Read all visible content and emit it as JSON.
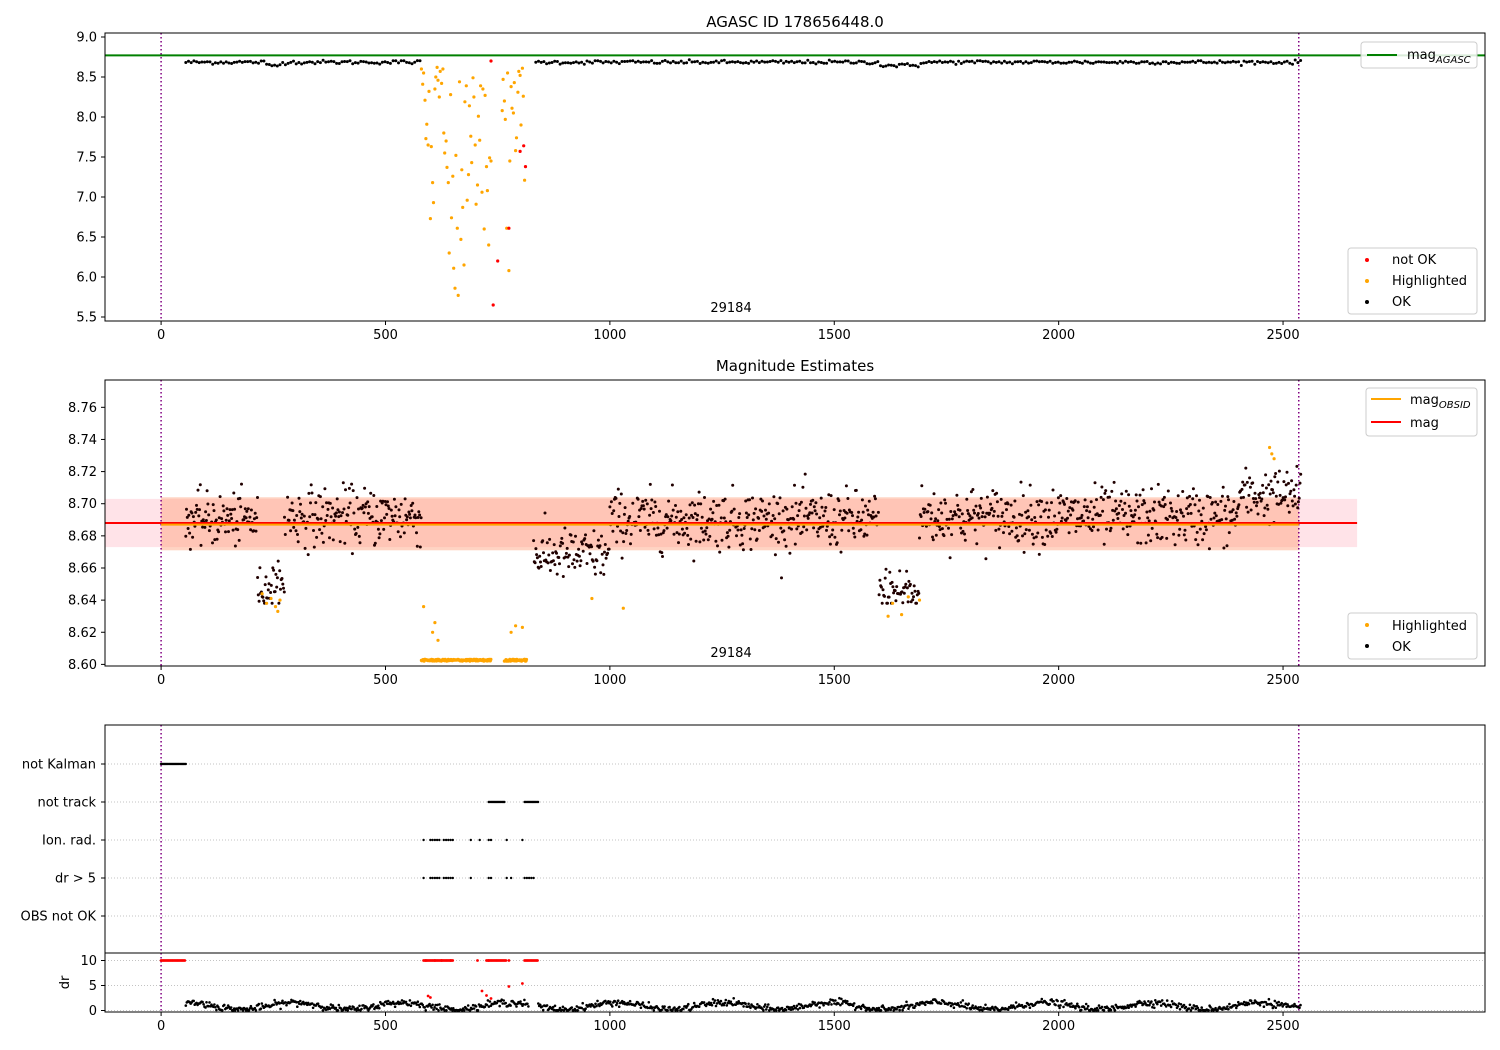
{
  "chart_data": [
    {
      "type": "scatter",
      "title": "AGASC ID 178656448.0",
      "xlim": [
        -125,
        2950
      ],
      "ylim": [
        5.45,
        9.05
      ],
      "x_ticks": [
        0,
        500,
        1000,
        1500,
        2000,
        2500
      ],
      "y_ticks": [
        5.5,
        6.0,
        6.5,
        7.0,
        7.5,
        8.0,
        8.5,
        9.0
      ],
      "y_tick_labels": [
        "5.5",
        "6.0",
        "6.5",
        "7.0",
        "7.5",
        "8.0",
        "8.5",
        "9.0"
      ],
      "obs_annotation": {
        "text": "29184",
        "x": 1270
      },
      "vlines_x": [
        0,
        2535
      ],
      "reference_lines": [
        {
          "name": "mag_AGASC",
          "y": 8.77,
          "color": "#008000"
        }
      ],
      "baseline_level": 8.685,
      "dip_segments": [
        [
          230,
          270,
          8.645
        ],
        [
          1600,
          1690,
          8.645
        ]
      ],
      "ok_x_range": [
        55,
        2540
      ],
      "ok_gap": [
        580,
        830
      ],
      "highlighted_points": [
        [
          580,
          8.6
        ],
        [
          583,
          8.41
        ],
        [
          585,
          8.55
        ],
        [
          588,
          8.21
        ],
        [
          590,
          7.73
        ],
        [
          592,
          7.91
        ],
        [
          595,
          7.65
        ],
        [
          597,
          8.32
        ],
        [
          600,
          6.73
        ],
        [
          602,
          7.63
        ],
        [
          605,
          7.18
        ],
        [
          607,
          6.93
        ],
        [
          610,
          8.35
        ],
        [
          612,
          8.5
        ],
        [
          615,
          8.62
        ],
        [
          617,
          8.46
        ],
        [
          620,
          8.25
        ],
        [
          622,
          8.57
        ],
        [
          625,
          8.42
        ],
        [
          628,
          8.6
        ],
        [
          630,
          7.8
        ],
        [
          632,
          7.55
        ],
        [
          635,
          7.7
        ],
        [
          637,
          7.37
        ],
        [
          640,
          7.18
        ],
        [
          642,
          6.3
        ],
        [
          645,
          8.28
        ],
        [
          647,
          6.74
        ],
        [
          650,
          7.26
        ],
        [
          652,
          6.11
        ],
        [
          655,
          5.86
        ],
        [
          657,
          7.52
        ],
        [
          660,
          6.61
        ],
        [
          662,
          5.77
        ],
        [
          665,
          8.44
        ],
        [
          668,
          6.47
        ],
        [
          670,
          7.34
        ],
        [
          672,
          6.87
        ],
        [
          675,
          6.15
        ],
        [
          677,
          8.19
        ],
        [
          680,
          8.39
        ],
        [
          682,
          6.96
        ],
        [
          685,
          7.28
        ],
        [
          687,
          8.14
        ],
        [
          690,
          7.76
        ],
        [
          692,
          7.43
        ],
        [
          695,
          8.49
        ],
        [
          697,
          8.25
        ],
        [
          700,
          7.65
        ],
        [
          702,
          6.91
        ],
        [
          705,
          7.15
        ],
        [
          707,
          8.01
        ],
        [
          710,
          7.71
        ],
        [
          712,
          8.39
        ],
        [
          715,
          7.06
        ],
        [
          717,
          8.35
        ],
        [
          720,
          6.6
        ],
        [
          722,
          8.27
        ],
        [
          725,
          7.38
        ],
        [
          727,
          7.08
        ],
        [
          730,
          6.4
        ],
        [
          732,
          7.49
        ],
        [
          735,
          7.45
        ],
        [
          760,
          8.08
        ],
        [
          762,
          8.47
        ],
        [
          765,
          8.2
        ],
        [
          767,
          7.97
        ],
        [
          770,
          6.61
        ],
        [
          772,
          8.55
        ],
        [
          775,
          6.08
        ],
        [
          777,
          7.45
        ],
        [
          780,
          8.38
        ],
        [
          782,
          8.11
        ],
        [
          785,
          8.05
        ],
        [
          787,
          8.43
        ],
        [
          790,
          7.58
        ],
        [
          792,
          7.74
        ],
        [
          795,
          8.31
        ],
        [
          797,
          8.57
        ],
        [
          800,
          8.52
        ],
        [
          802,
          7.9
        ],
        [
          805,
          8.61
        ],
        [
          807,
          8.26
        ],
        [
          810,
          7.21
        ]
      ],
      "notok_points": [
        [
          735,
          8.7
        ],
        [
          740,
          5.65
        ],
        [
          750,
          6.2
        ],
        [
          775,
          6.61
        ],
        [
          800,
          7.57
        ],
        [
          808,
          7.64
        ],
        [
          812,
          7.38
        ]
      ],
      "legend_line": {
        "label": "mag",
        "subscript": "AGASC"
      },
      "legend_points": [
        "not OK",
        "Highlighted",
        "OK"
      ],
      "colors": {
        "ok": "#000000",
        "highlighted": "#ffa500",
        "notok": "#ff0000"
      }
    },
    {
      "type": "scatter",
      "title": "Magnitude Estimates",
      "xlim": [
        -125,
        2950
      ],
      "ylim": [
        8.599,
        8.777
      ],
      "x_ticks": [
        0,
        500,
        1000,
        1500,
        2000,
        2500
      ],
      "y_ticks": [
        8.6,
        8.62,
        8.64,
        8.66,
        8.68,
        8.7,
        8.72,
        8.74,
        8.76
      ],
      "y_tick_labels": [
        "8.60",
        "8.62",
        "8.64",
        "8.66",
        "8.68",
        "8.70",
        "8.72",
        "8.74",
        "8.76"
      ],
      "obs_annotation": {
        "text": "29184",
        "x": 1270
      },
      "vlines_x": [
        0,
        2535
      ],
      "reference_lines": [
        {
          "name": "mag",
          "y": 8.688,
          "x0": -125,
          "x1": 2665,
          "color": "#ff0000"
        },
        {
          "name": "mag_OBSID",
          "y": 8.687,
          "x0": 0,
          "x1": 2535,
          "color": "#ffa500"
        }
      ],
      "bands": [
        {
          "name": "mag band",
          "y0": 8.673,
          "y1": 8.703,
          "x0": -125,
          "x1": 2665,
          "color": "#ffc0cb"
        },
        {
          "name": "mag_OBSID band",
          "y0": 8.671,
          "y1": 8.704,
          "x0": 0,
          "x1": 2535,
          "color": "#ffa07a"
        }
      ],
      "segments": [
        {
          "x0": 55,
          "x1": 215,
          "level": 8.69,
          "spread": 0.008
        },
        {
          "x0": 215,
          "x1": 275,
          "level": 8.648,
          "spread": 0.007
        },
        {
          "x0": 275,
          "x1": 580,
          "level": 8.692,
          "spread": 0.009
        },
        {
          "x0": 830,
          "x1": 1000,
          "level": 8.668,
          "spread": 0.008
        },
        {
          "x0": 1000,
          "x1": 1600,
          "level": 8.69,
          "spread": 0.009
        },
        {
          "x0": 1600,
          "x1": 1690,
          "level": 8.646,
          "spread": 0.007
        },
        {
          "x0": 1690,
          "x1": 2400,
          "level": 8.692,
          "spread": 0.009
        },
        {
          "x0": 2400,
          "x1": 2540,
          "level": 8.705,
          "spread": 0.008
        }
      ],
      "floor_highlight": {
        "y": 8.602,
        "ranges": [
          [
            580,
            735
          ],
          [
            765,
            815
          ]
        ]
      },
      "highlighted_points": [
        [
          225,
          8.644
        ],
        [
          235,
          8.638
        ],
        [
          245,
          8.641
        ],
        [
          255,
          8.636
        ],
        [
          260,
          8.633
        ],
        [
          265,
          8.64
        ],
        [
          585,
          8.636
        ],
        [
          605,
          8.62
        ],
        [
          610,
          8.626
        ],
        [
          617,
          8.615
        ],
        [
          780,
          8.62
        ],
        [
          790,
          8.624
        ],
        [
          805,
          8.623
        ],
        [
          960,
          8.641
        ],
        [
          1030,
          8.635
        ],
        [
          1620,
          8.63
        ],
        [
          1630,
          8.638
        ],
        [
          1650,
          8.631
        ],
        [
          1665,
          8.642
        ],
        [
          1690,
          8.64
        ],
        [
          2470,
          8.735
        ],
        [
          2475,
          8.731
        ],
        [
          2480,
          8.728
        ]
      ],
      "legend_lines": [
        {
          "label": "mag",
          "subscript": "OBSID"
        },
        {
          "label": "mag",
          "subscript": ""
        }
      ],
      "legend_points": [
        "Highlighted",
        "OK"
      ],
      "colors": {
        "ok": "#000000",
        "highlighted": "#ffa500",
        "notok": "#ff0000"
      }
    },
    {
      "type": "scatter",
      "xlim": [
        -125,
        2950
      ],
      "x_ticks": [
        0,
        500,
        1000,
        1500,
        2000,
        2500
      ],
      "flag_rows": [
        "not Kalman",
        "not track",
        "Ion. rad.",
        "dr > 5",
        "OBS not OK"
      ],
      "flag_ranges": [
        {
          "row": "not Kalman",
          "ranges": [
            [
              0,
              55
            ]
          ]
        },
        {
          "row": "not track",
          "ranges": [
            [
              730,
              765
            ],
            [
              810,
              840
            ]
          ]
        },
        {
          "row": "Ion. rad.",
          "points": [
            585,
            600,
            605,
            610,
            615,
            620,
            630,
            635,
            640,
            645,
            650,
            690,
            710,
            730,
            735,
            770,
            805
          ]
        },
        {
          "row": "dr > 5",
          "points": [
            585,
            600,
            605,
            610,
            615,
            620,
            630,
            635,
            640,
            645,
            650,
            690,
            730,
            735,
            770,
            780,
            810,
            815,
            820,
            825,
            830
          ]
        }
      ],
      "vlines_x": [
        0,
        2535
      ],
      "colors": {
        "flag": "#000000",
        "vline": "#800080",
        "grid": "#b0b0b0"
      }
    },
    {
      "type": "scatter",
      "xlim": [
        -125,
        2950
      ],
      "ylim": [
        -0.3,
        11.5
      ],
      "x_ticks": [
        0,
        500,
        1000,
        1500,
        2000,
        2500
      ],
      "y_ticks": [
        0,
        5,
        10
      ],
      "y_tick_labels": [
        "0",
        "5",
        "10"
      ],
      "ylabel": "dr",
      "vlines_x": [
        0,
        2535
      ],
      "clip_level": 10,
      "clipped_ranges": [
        [
          0,
          55
        ],
        [
          585,
          650
        ],
        [
          725,
          770
        ],
        [
          810,
          840
        ]
      ],
      "clipped_points": [
        590,
        610,
        625,
        645,
        705,
        730,
        775
      ],
      "red_points": [
        [
          595,
          2.9
        ],
        [
          600,
          2.6
        ],
        [
          715,
          3.9
        ],
        [
          725,
          3.0
        ],
        [
          735,
          2.4
        ],
        [
          775,
          4.8
        ],
        [
          805,
          5.4
        ]
      ],
      "baseline_range": [
        55,
        2540
      ],
      "baseline_gap": [
        820,
        840
      ]
    }
  ]
}
